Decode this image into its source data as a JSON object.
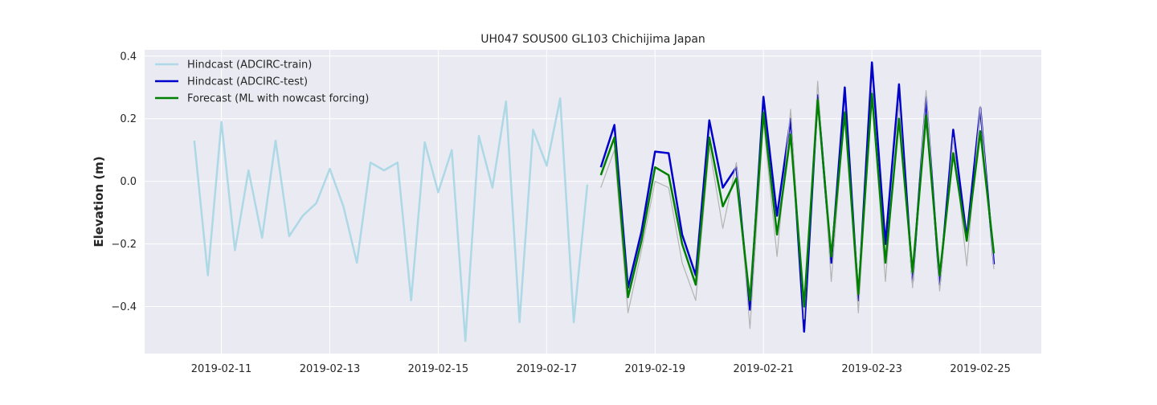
{
  "chart_data": {
    "type": "line",
    "title": "UH047 SOUS00 GL103 Chichijima Japan",
    "xlabel": "",
    "ylabel": "Elevation (m)",
    "x_axis": "date",
    "xlim": [
      "2019-02-09T14:00",
      "2019-02-26T03:00"
    ],
    "ylim": [
      -0.55,
      0.42
    ],
    "x_ticks": [
      "2019-02-11",
      "2019-02-13",
      "2019-02-15",
      "2019-02-17",
      "2019-02-19",
      "2019-02-21",
      "2019-02-23",
      "2019-02-25"
    ],
    "y_ticks": [
      0.4,
      0.2,
      0.0,
      -0.2,
      -0.4
    ],
    "y_tick_labels": [
      "0.4",
      "0.2",
      "0.0",
      "−0.2",
      "−0.4"
    ],
    "grid": true,
    "legend_position": "top-left",
    "colors": {
      "plot_background": "#eaeaf2",
      "grid": "#ffffff",
      "train": "#add8e6",
      "test": "#0000cd",
      "forecast": "#008000",
      "gray": "#b3b3b3"
    },
    "series": [
      {
        "name": "Hindcast (ADCIRC-train)",
        "color": "#add8e6",
        "x": [
          "2019-02-10T12:00",
          "2019-02-10T18:00",
          "2019-02-11T00:00",
          "2019-02-11T06:00",
          "2019-02-11T12:00",
          "2019-02-11T18:00",
          "2019-02-12T00:00",
          "2019-02-12T06:00",
          "2019-02-12T12:00",
          "2019-02-12T18:00",
          "2019-02-13T00:00",
          "2019-02-13T06:00",
          "2019-02-13T12:00",
          "2019-02-13T18:00",
          "2019-02-14T00:00",
          "2019-02-14T06:00",
          "2019-02-14T12:00",
          "2019-02-14T18:00",
          "2019-02-15T00:00",
          "2019-02-15T06:00",
          "2019-02-15T12:00",
          "2019-02-15T18:00",
          "2019-02-16T00:00",
          "2019-02-16T06:00",
          "2019-02-16T12:00",
          "2019-02-16T18:00",
          "2019-02-17T00:00",
          "2019-02-17T06:00",
          "2019-02-17T12:00",
          "2019-02-17T18:00"
        ],
        "values": [
          0.13,
          -0.3,
          0.19,
          -0.22,
          0.035,
          -0.18,
          0.13,
          -0.175,
          -0.11,
          -0.07,
          0.04,
          -0.08,
          -0.26,
          0.06,
          0.035,
          0.06,
          -0.38,
          0.125,
          -0.035,
          0.1,
          -0.51,
          0.145,
          -0.02,
          0.255,
          -0.45,
          0.165,
          0.05,
          0.265,
          -0.45,
          -0.01
        ]
      },
      {
        "name": "Hindcast (ADCIRC-test)",
        "color": "#0000cd",
        "x": [
          "2019-02-18T00:00",
          "2019-02-18T06:00",
          "2019-02-18T12:00",
          "2019-02-18T18:00",
          "2019-02-19T00:00",
          "2019-02-19T06:00",
          "2019-02-19T12:00",
          "2019-02-19T18:00",
          "2019-02-20T00:00",
          "2019-02-20T06:00",
          "2019-02-20T12:00",
          "2019-02-20T18:00",
          "2019-02-21T00:00",
          "2019-02-21T06:00",
          "2019-02-21T12:00",
          "2019-02-21T18:00",
          "2019-02-22T00:00",
          "2019-02-22T06:00",
          "2019-02-22T12:00",
          "2019-02-22T18:00",
          "2019-02-23T00:00",
          "2019-02-23T06:00",
          "2019-02-23T12:00",
          "2019-02-23T18:00",
          "2019-02-24T00:00",
          "2019-02-24T06:00",
          "2019-02-24T12:00",
          "2019-02-24T18:00",
          "2019-02-25T00:00",
          "2019-02-25T06:00"
        ],
        "values": [
          0.045,
          0.18,
          -0.34,
          -0.16,
          0.095,
          0.09,
          -0.17,
          -0.3,
          0.195,
          -0.02,
          0.045,
          -0.41,
          0.27,
          -0.11,
          0.2,
          -0.48,
          0.275,
          -0.26,
          0.3,
          -0.38,
          0.38,
          -0.2,
          0.31,
          -0.32,
          0.27,
          -0.33,
          0.165,
          -0.18,
          0.235,
          -0.265
        ]
      },
      {
        "name": "",
        "color": "#b3b3b3",
        "x": [
          "2019-02-18T00:00",
          "2019-02-18T06:00",
          "2019-02-18T12:00",
          "2019-02-18T18:00",
          "2019-02-19T00:00",
          "2019-02-19T06:00",
          "2019-02-19T12:00",
          "2019-02-19T18:00",
          "2019-02-20T00:00",
          "2019-02-20T06:00",
          "2019-02-20T12:00",
          "2019-02-20T18:00",
          "2019-02-21T00:00",
          "2019-02-21T06:00",
          "2019-02-21T12:00",
          "2019-02-21T18:00",
          "2019-02-22T00:00",
          "2019-02-22T06:00",
          "2019-02-22T12:00",
          "2019-02-22T18:00",
          "2019-02-23T00:00",
          "2019-02-23T06:00",
          "2019-02-23T12:00",
          "2019-02-23T18:00",
          "2019-02-24T00:00",
          "2019-02-24T06:00",
          "2019-02-24T12:00",
          "2019-02-24T18:00",
          "2019-02-25T00:00",
          "2019-02-25T06:00"
        ],
        "values": [
          -0.02,
          0.1,
          -0.42,
          -0.22,
          0.0,
          -0.02,
          -0.26,
          -0.38,
          0.11,
          -0.15,
          0.06,
          -0.47,
          0.19,
          -0.24,
          0.23,
          -0.44,
          0.32,
          -0.32,
          0.23,
          -0.42,
          0.29,
          -0.32,
          0.25,
          -0.34,
          0.29,
          -0.35,
          0.14,
          -0.27,
          0.24,
          -0.28
        ]
      },
      {
        "name": "Forecast (ML with nowcast forcing)",
        "color": "#008000",
        "x": [
          "2019-02-18T00:00",
          "2019-02-18T06:00",
          "2019-02-18T12:00",
          "2019-02-18T18:00",
          "2019-02-19T00:00",
          "2019-02-19T06:00",
          "2019-02-19T12:00",
          "2019-02-19T18:00",
          "2019-02-20T00:00",
          "2019-02-20T06:00",
          "2019-02-20T12:00",
          "2019-02-20T18:00",
          "2019-02-21T00:00",
          "2019-02-21T06:00",
          "2019-02-21T12:00",
          "2019-02-21T18:00",
          "2019-02-22T00:00",
          "2019-02-22T06:00",
          "2019-02-22T12:00",
          "2019-02-22T18:00",
          "2019-02-23T00:00",
          "2019-02-23T06:00",
          "2019-02-23T12:00",
          "2019-02-23T18:00",
          "2019-02-24T00:00",
          "2019-02-24T06:00",
          "2019-02-24T12:00",
          "2019-02-24T18:00",
          "2019-02-25T00:00",
          "2019-02-25T06:00"
        ],
        "values": [
          0.02,
          0.14,
          -0.37,
          -0.19,
          0.045,
          0.02,
          -0.2,
          -0.33,
          0.14,
          -0.08,
          0.01,
          -0.38,
          0.22,
          -0.17,
          0.15,
          -0.4,
          0.26,
          -0.24,
          0.22,
          -0.36,
          0.28,
          -0.26,
          0.2,
          -0.29,
          0.21,
          -0.3,
          0.09,
          -0.19,
          0.16,
          -0.23
        ]
      }
    ]
  }
}
